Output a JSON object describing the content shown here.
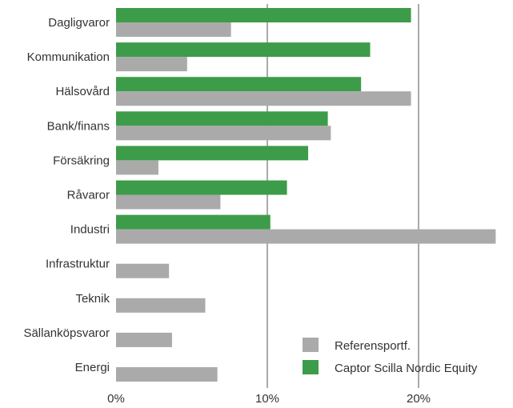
{
  "chart_data": {
    "type": "bar",
    "orientation": "horizontal",
    "categories": [
      "Dagligvaror",
      "Kommunikation",
      "Hälsovård",
      "Bank/finans",
      "Försäkring",
      "Råvaror",
      "Industri",
      "Infrastruktur",
      "Teknik",
      "Sällanköpsvaror",
      "Energi"
    ],
    "series": [
      {
        "name": "Captor Scilla Nordic Equity",
        "color": "#3d9c49",
        "values": [
          19.5,
          16.8,
          16.2,
          14.0,
          12.7,
          11.3,
          10.2,
          0,
          0,
          0,
          0
        ]
      },
      {
        "name": "Referensportf.",
        "color": "#aaaaaa",
        "values": [
          7.6,
          4.7,
          19.5,
          14.2,
          2.8,
          6.9,
          25.1,
          3.5,
          5.9,
          3.7,
          6.7
        ]
      }
    ],
    "xticks": [
      "0%",
      "10%",
      "20%"
    ],
    "xlim": [
      0,
      25.3
    ],
    "legend": {
      "placement": "bottom-right",
      "order": [
        "Referensportf.",
        "Captor Scilla Nordic Equity"
      ]
    }
  }
}
